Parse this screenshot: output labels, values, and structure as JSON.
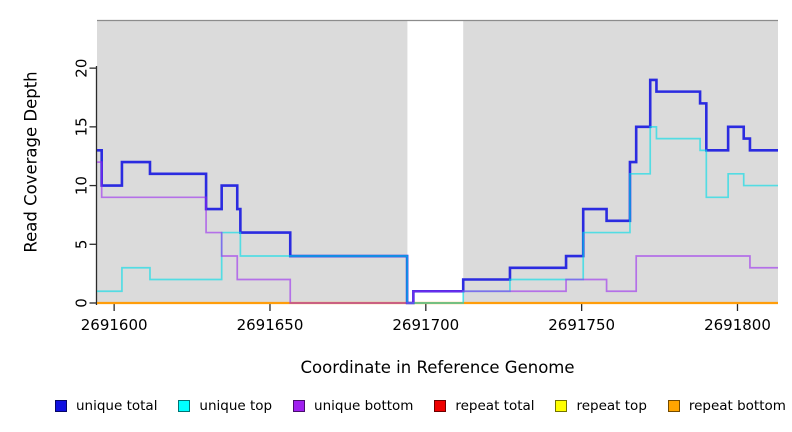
{
  "titles": {
    "x": "Coordinate in Reference Genome",
    "y": "Read Coverage Depth"
  },
  "colors": {
    "background": "#FFFFFF",
    "panel_fill": "#DBDBDB",
    "panel_top_border": "#8C8C8C",
    "axis": "#2A2A2A",
    "text": "#000000"
  },
  "legend": [
    {
      "label": "unique total",
      "color": "#1010E0"
    },
    {
      "label": "unique top",
      "color": "#00FFFF"
    },
    {
      "label": "unique bottom",
      "color": "#A020F0"
    },
    {
      "label": "repeat total",
      "color": "#EE0000"
    },
    {
      "label": "repeat top",
      "color": "#FFFF00"
    },
    {
      "label": "repeat bottom",
      "color": "#FFA500"
    }
  ],
  "chart_data": {
    "type": "line",
    "subtype": "step-coverage",
    "title": "",
    "xlabel": "Coordinate in Reference Genome",
    "ylabel": "Read Coverage Depth",
    "x_axis": {
      "min": 2691594.5,
      "max": 2691813,
      "ticks": [
        {
          "coord": 2691600,
          "label": "2691600"
        },
        {
          "coord": 2691650,
          "label": "2691650"
        },
        {
          "coord": 2691700,
          "label": "2691700"
        },
        {
          "coord": 2691750,
          "label": "2691750"
        },
        {
          "coord": 2691800,
          "label": "2691800"
        }
      ]
    },
    "y_axis": {
      "min": 0,
      "max": 24.1,
      "ticks": [
        {
          "value": 0,
          "label": "0"
        },
        {
          "value": 5,
          "label": "5"
        },
        {
          "value": 10,
          "label": "10"
        },
        {
          "value": 15,
          "label": "15"
        },
        {
          "value": 20,
          "label": "20"
        }
      ]
    },
    "mappable_regions": [
      [
        2691594.5,
        2691694.1
      ],
      [
        2691712.0,
        2691813.0
      ]
    ],
    "unmapped_gap": [
      2691694.1,
      2691712.0
    ],
    "draw_order": [
      "repeat total",
      "repeat top",
      "repeat bottom",
      "unique total",
      "unique top",
      "unique bottom"
    ],
    "series": [
      {
        "name": "unique total",
        "color": "#1717E0",
        "opacity": 0.9,
        "width": 2.6,
        "points": [
          [
            2691594.5,
            13
          ],
          [
            2691596,
            10
          ],
          [
            2691602.5,
            12
          ],
          [
            2691611.5,
            11
          ],
          [
            2691629.5,
            8
          ],
          [
            2691634.5,
            10
          ],
          [
            2691639.5,
            8
          ],
          [
            2691640.5,
            6
          ],
          [
            2691656.5,
            4
          ],
          [
            2691694,
            0
          ],
          [
            2691696,
            1
          ],
          [
            2691712,
            2
          ],
          [
            2691727,
            3
          ],
          [
            2691745,
            4
          ],
          [
            2691750.5,
            8
          ],
          [
            2691758,
            7
          ],
          [
            2691765.5,
            12
          ],
          [
            2691767.5,
            15
          ],
          [
            2691772,
            19
          ],
          [
            2691774,
            18
          ],
          [
            2691788,
            17
          ],
          [
            2691790,
            13
          ],
          [
            2691797,
            15
          ],
          [
            2691802,
            14
          ],
          [
            2691804,
            13
          ]
        ]
      },
      {
        "name": "unique top",
        "color": "#00DDE8",
        "opacity": 0.62,
        "width": 1.7,
        "points": [
          [
            2691594.5,
            1
          ],
          [
            2691602.5,
            3
          ],
          [
            2691611.5,
            2
          ],
          [
            2691634.5,
            6
          ],
          [
            2691640.5,
            4
          ],
          [
            2691694,
            0
          ],
          [
            2691712,
            1
          ],
          [
            2691727,
            2
          ],
          [
            2691750.5,
            6
          ],
          [
            2691765.5,
            11
          ],
          [
            2691772,
            15
          ],
          [
            2691774,
            14
          ],
          [
            2691788,
            13
          ],
          [
            2691790,
            9
          ],
          [
            2691797,
            11
          ],
          [
            2691802,
            10
          ]
        ]
      },
      {
        "name": "unique bottom",
        "color": "#9A28F0",
        "opacity": 0.6,
        "width": 1.7,
        "points": [
          [
            2691594.5,
            12
          ],
          [
            2691596,
            9
          ],
          [
            2691629.5,
            6
          ],
          [
            2691634.5,
            4
          ],
          [
            2691639.5,
            2
          ],
          [
            2691656.5,
            0
          ],
          [
            2691696,
            1
          ],
          [
            2691745,
            2
          ],
          [
            2691758,
            1
          ],
          [
            2691767.5,
            4
          ],
          [
            2691804,
            3
          ]
        ]
      },
      {
        "name": "repeat total",
        "color": "#E02020",
        "opacity": 1,
        "width": 1.7,
        "points": [
          [
            2691594.5,
            0
          ]
        ]
      },
      {
        "name": "repeat top",
        "color": "#F5E800",
        "opacity": 1,
        "width": 1.7,
        "points": [
          [
            2691594.5,
            0
          ]
        ]
      },
      {
        "name": "repeat bottom",
        "color": "#FF9D0A",
        "opacity": 1,
        "width": 2.2,
        "points": [
          [
            2691594.5,
            0
          ]
        ]
      }
    ]
  }
}
